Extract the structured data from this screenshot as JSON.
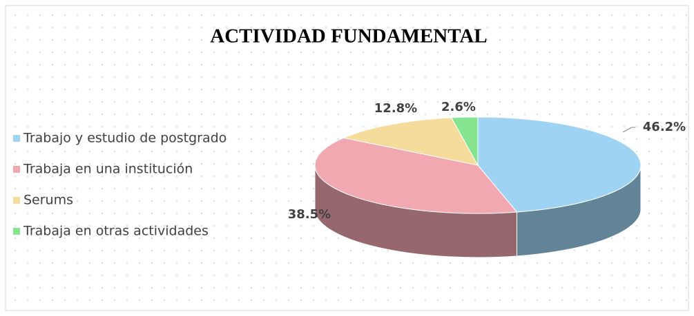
{
  "chart_data": {
    "type": "pie3d",
    "title": "ACTIVIDAD FUNDAMENTAL",
    "categories": [
      "Trabajo y estudio de postgrado",
      "Trabaja en una institución",
      "Serums",
      "Trabaja en otras actividades"
    ],
    "values": [
      46.2,
      38.5,
      12.8,
      2.6
    ],
    "value_labels": [
      "46.2%",
      "38.5%",
      "12.8%",
      "2.6%"
    ],
    "colors": [
      "#9fd3f3",
      "#f2a8b1",
      "#f5dc9c",
      "#86e38f"
    ],
    "legend": "left"
  }
}
